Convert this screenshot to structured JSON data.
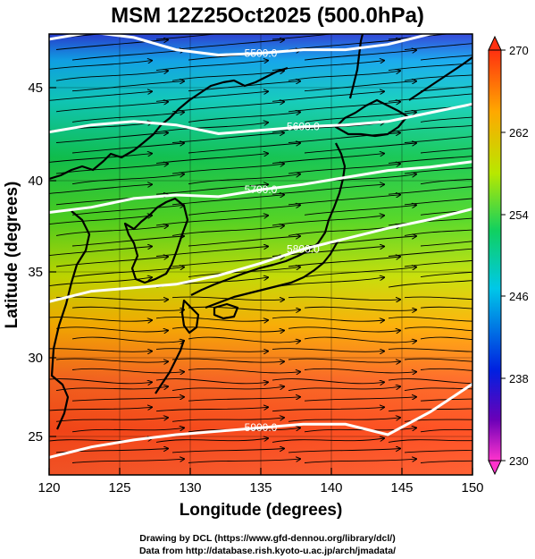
{
  "title": "MSM 12Z25Oct2025 (500.0hPa)",
  "x_axis": {
    "label": "Longitude (degrees)",
    "range": [
      120,
      150
    ],
    "ticks": [
      "120",
      "125",
      "130",
      "135",
      "140",
      "145",
      "150"
    ]
  },
  "y_axis": {
    "label": "Latitude  (degrees)",
    "range": [
      22.4,
      47.6
    ],
    "ticks": [
      "25",
      "30",
      "35",
      "40",
      "45"
    ]
  },
  "colorbar": {
    "range": [
      230,
      270
    ],
    "ticks": [
      "230",
      "238",
      "246",
      "254",
      "262",
      "270"
    ],
    "colors": [
      "#ff33cc",
      "#6a00b8",
      "#0020e0",
      "#00c8e8",
      "#10d060",
      "#b8e800",
      "#ffa800",
      "#ff3010"
    ]
  },
  "contours": [
    {
      "label": "5500.0",
      "values": [
        47.3,
        47.7,
        47.4,
        46.7,
        46.4,
        46.5,
        46.7,
        46.7,
        47.0,
        47.6,
        47.9
      ]
    },
    {
      "label": "5600.0",
      "values": [
        42.0,
        42.4,
        42.6,
        42.4,
        41.9,
        42.1,
        42.3,
        42.4,
        42.6,
        43.1,
        43.6
      ]
    },
    {
      "label": "5700.0",
      "values": [
        37.4,
        37.7,
        38.2,
        38.4,
        38.3,
        38.7,
        39.0,
        39.4,
        39.8,
        40.0,
        40.3
      ]
    },
    {
      "label": "5800.0",
      "values": [
        32.3,
        32.9,
        33.1,
        33.3,
        33.8,
        34.5,
        35.3,
        35.9,
        36.5,
        37.0,
        37.6
      ]
    },
    {
      "label": "5900.0",
      "values": [
        23.4,
        24.0,
        24.4,
        24.7,
        24.9,
        25.1,
        25.3,
        25.3,
        24.7,
        26.0,
        27.6
      ]
    }
  ],
  "credits": {
    "line1": "Drawing by DCL (https://www.gfd-dennou.org/library/dcl/)",
    "line2": "Data from http://database.rish.kyoto-u.ac.jp/arch/jmadata/"
  }
}
